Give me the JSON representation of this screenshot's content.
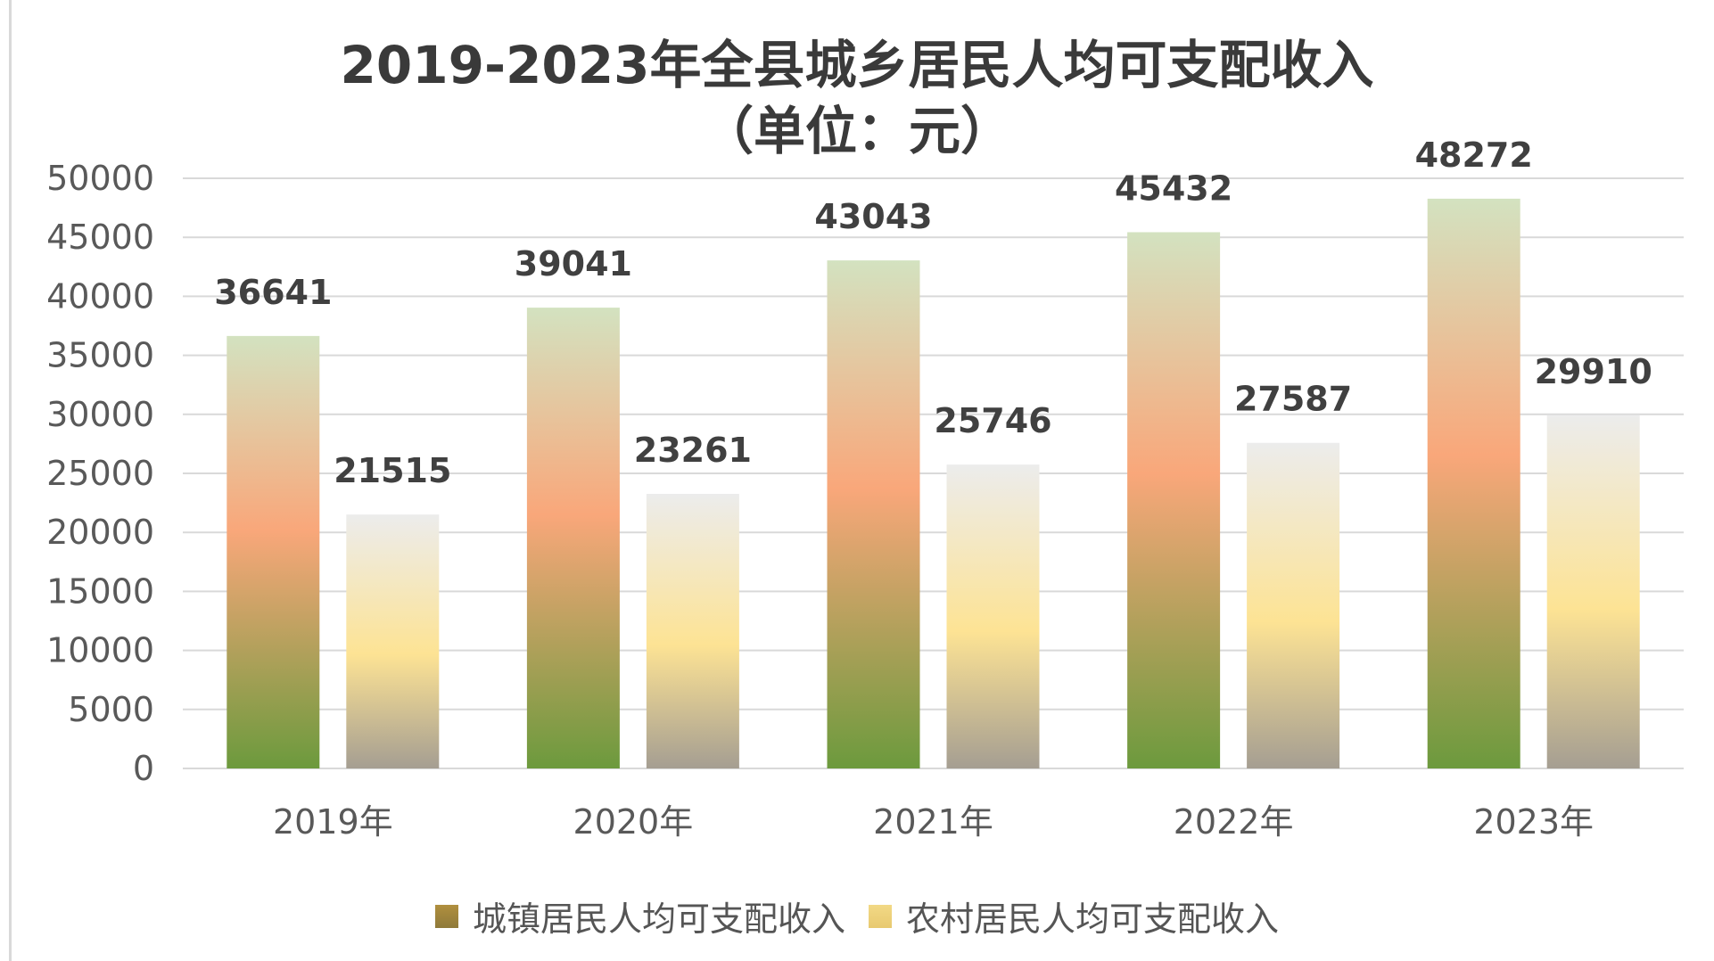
{
  "chart_data": {
    "type": "bar",
    "title_line1": "2019-2023年全县城乡居民人均可支配收入",
    "title_line2": "（单位：元）",
    "categories": [
      "2019年",
      "2020年",
      "2021年",
      "2022年",
      "2023年"
    ],
    "series": [
      {
        "name": "城镇居民人均可支配收入",
        "values": [
          36641,
          39041,
          43043,
          45432,
          48272
        ],
        "gradient": [
          "#d3e2c0",
          "#f9a77a",
          "#6c9a3d"
        ]
      },
      {
        "name": "农村居民人均可支配收入",
        "values": [
          21515,
          23261,
          25746,
          27587,
          29910
        ],
        "gradient": [
          "#ececec",
          "#fde394",
          "#a59e92"
        ]
      }
    ],
    "ylim": [
      0,
      50000
    ],
    "yticks": [
      0,
      5000,
      10000,
      15000,
      20000,
      25000,
      30000,
      35000,
      40000,
      45000,
      50000
    ],
    "grid": true,
    "legend_position": "bottom",
    "colors": {
      "gridline": "#d9d9d9",
      "axis_text": "#595959",
      "data_label": "#404040",
      "title": "#3a3a3a",
      "urban_legend": "#b08f3e",
      "rural_legend": "#f2d985"
    }
  }
}
